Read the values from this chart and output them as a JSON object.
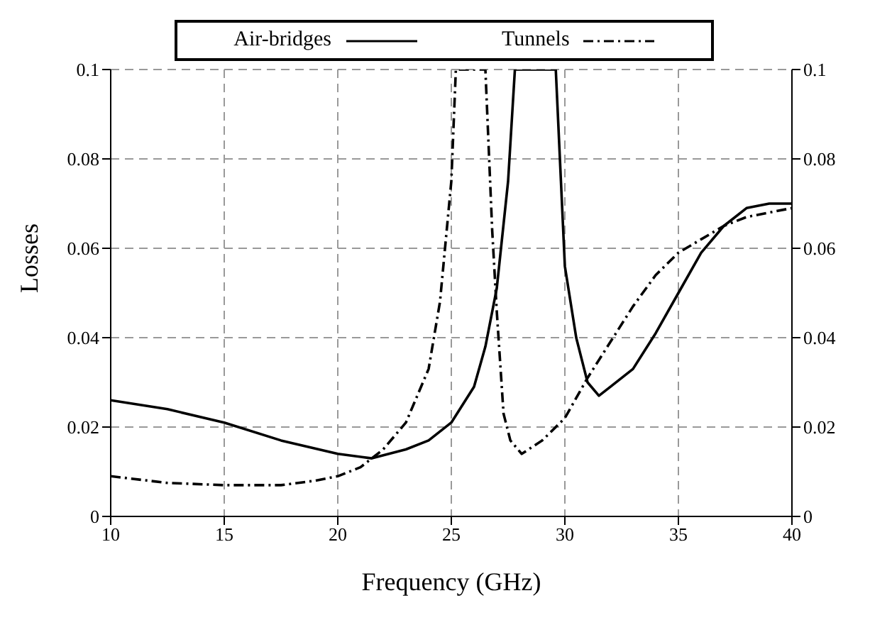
{
  "chart_data": {
    "type": "line",
    "xlabel": "Frequency (GHz)",
    "ylabel": "Losses",
    "xlim": [
      10,
      40
    ],
    "xticks": [
      10,
      15,
      20,
      25,
      30,
      35,
      40
    ],
    "ylim": [
      0,
      0.1
    ],
    "yticks": [
      0,
      0.02,
      0.04,
      0.06,
      0.08,
      0.1
    ],
    "y2lim": [
      0,
      0.1
    ],
    "y2ticks": [
      0,
      0.02,
      0.04,
      0.06,
      0.08,
      0.1
    ],
    "grid": true,
    "legend": "top",
    "marker": "none",
    "series": [
      {
        "name": "Air-bridges",
        "color": "#000000",
        "line_style": "solid",
        "x": [
          10,
          12.5,
          15,
          17.5,
          20,
          21.5,
          23,
          24,
          25,
          26,
          26.5,
          27,
          27.5,
          27.8,
          29.6,
          30,
          30.5,
          31,
          31.5,
          32,
          33,
          34,
          35,
          36,
          37,
          38,
          39,
          40
        ],
        "values": [
          0.026,
          0.024,
          0.021,
          0.017,
          0.014,
          0.013,
          0.015,
          0.017,
          0.021,
          0.029,
          0.038,
          0.051,
          0.075,
          0.1,
          0.1,
          0.056,
          0.04,
          0.03,
          0.027,
          0.029,
          0.033,
          0.041,
          0.05,
          0.059,
          0.065,
          0.069,
          0.07,
          0.07
        ]
      },
      {
        "name": "Tunnels",
        "color": "#000000",
        "line_style": "dashed",
        "x": [
          10,
          12.5,
          15,
          17.5,
          19,
          20,
          21,
          22,
          23,
          24,
          24.5,
          25,
          25.2,
          26.5,
          26.8,
          27,
          27.3,
          27.6,
          28.1,
          29,
          30,
          31,
          32,
          33,
          34,
          35,
          36,
          37,
          38,
          39,
          40
        ],
        "values": [
          0.009,
          0.0075,
          0.007,
          0.007,
          0.008,
          0.009,
          0.011,
          0.015,
          0.021,
          0.033,
          0.048,
          0.075,
          0.1,
          0.1,
          0.064,
          0.046,
          0.023,
          0.017,
          0.014,
          0.017,
          0.022,
          0.031,
          0.039,
          0.047,
          0.054,
          0.059,
          0.062,
          0.065,
          0.067,
          0.068,
          0.069
        ]
      }
    ]
  }
}
